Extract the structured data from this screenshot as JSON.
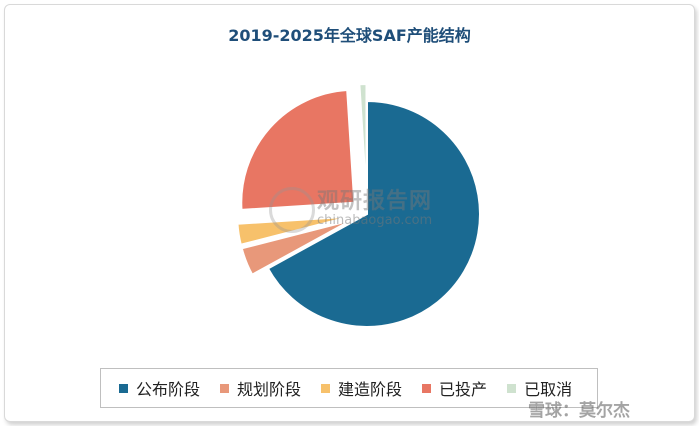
{
  "chart_data": {
    "type": "pie",
    "title": "2019-2025年全球SAF产能结构",
    "slices": [
      {
        "label": "公布阶段",
        "value": 67.0,
        "color": "#1a6a92",
        "explode": 0.0
      },
      {
        "label": "规划阶段",
        "value": 4.0,
        "color": "#e8987a",
        "explode": 0.15
      },
      {
        "label": "建造阶段",
        "value": 3.0,
        "color": "#f7c16b",
        "explode": 0.15
      },
      {
        "label": "已投产",
        "value": 25.0,
        "color": "#e87663",
        "explode": 0.15
      },
      {
        "label": "已取消",
        "value": 1.0,
        "color": "#cfe2cf",
        "explode": 0.15
      }
    ],
    "legend_position": "bottom"
  },
  "watermark": {
    "brand": "观研报告网",
    "url": "chinabaogao.com"
  },
  "corner_mark": "雪球：莫尔杰"
}
